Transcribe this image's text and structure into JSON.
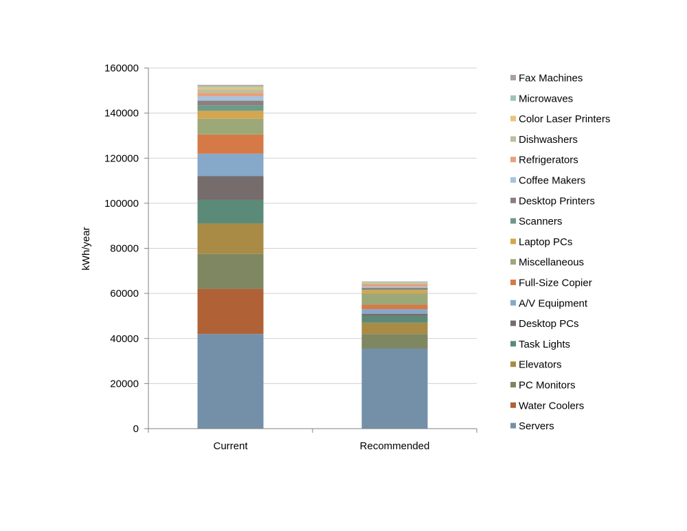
{
  "chart_data": {
    "type": "bar",
    "stacked": true,
    "title": "",
    "xlabel": "",
    "ylabel": "kWh/year",
    "ylim": [
      0,
      160000
    ],
    "y_ticks": [
      0,
      20000,
      40000,
      60000,
      80000,
      100000,
      120000,
      140000,
      160000
    ],
    "grid": true,
    "legend_position": "right",
    "categories": [
      "Current",
      "Recommended"
    ],
    "series": [
      {
        "name": "Servers",
        "color": "#7490A9",
        "values": [
          42000,
          35500
        ]
      },
      {
        "name": "Water Coolers",
        "color": "#B06236",
        "values": [
          20000,
          0
        ]
      },
      {
        "name": "PC Monitors",
        "color": "#7E8762",
        "values": [
          15500,
          6500
        ]
      },
      {
        "name": "Elevators",
        "color": "#A98B46",
        "values": [
          13500,
          5000
        ]
      },
      {
        "name": "Task Lights",
        "color": "#5B8A79",
        "values": [
          10500,
          3000
        ]
      },
      {
        "name": "Desktop PCs",
        "color": "#766C6C",
        "values": [
          10500,
          1000
        ]
      },
      {
        "name": "A/V Equipment",
        "color": "#86A8C9",
        "values": [
          10000,
          2000
        ]
      },
      {
        "name": "Full-Size Copier",
        "color": "#D57A47",
        "values": [
          8500,
          2000
        ]
      },
      {
        "name": "Miscellaneous",
        "color": "#9CA878",
        "values": [
          7000,
          5000
        ]
      },
      {
        "name": "Laptop PCs",
        "color": "#D4A650",
        "values": [
          3500,
          1500
        ]
      },
      {
        "name": "Scanners",
        "color": "#6E9A89",
        "values": [
          2500,
          500
        ]
      },
      {
        "name": "Desktop Printers",
        "color": "#8C7F7F",
        "values": [
          2000,
          500
        ]
      },
      {
        "name": "Coffee Makers",
        "color": "#A9C3DC",
        "values": [
          2000,
          500
        ]
      },
      {
        "name": "Refrigerators",
        "color": "#E8A07C",
        "values": [
          1500,
          1000
        ]
      },
      {
        "name": "Dishwashers",
        "color": "#B9C1A0",
        "values": [
          1500,
          500
        ]
      },
      {
        "name": "Color Laser Printers",
        "color": "#E6C57E",
        "values": [
          1000,
          300
        ]
      },
      {
        "name": "Microwaves",
        "color": "#9CC4B6",
        "values": [
          500,
          300
        ]
      },
      {
        "name": "Fax Machines",
        "color": "#A9A0A0",
        "values": [
          500,
          200
        ]
      }
    ]
  }
}
